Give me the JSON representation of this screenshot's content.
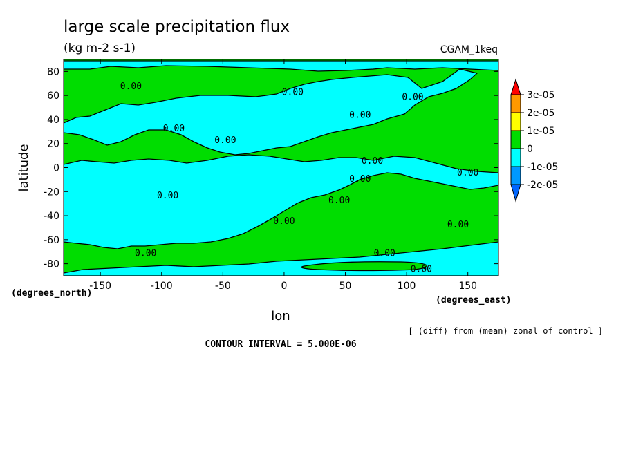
{
  "chart_data": {
    "type": "contour",
    "title": "large scale precipitation flux",
    "units": "(kg m-2 s-1)",
    "dataset_label": "CGAM_1keq",
    "xlabel": "lon",
    "ylabel": "latitude",
    "x_units": "(degrees_east)",
    "y_units": "(degrees_north)",
    "xlim": [
      -180,
      175
    ],
    "ylim": [
      -90,
      90
    ],
    "x_ticks": [
      -150,
      -100,
      -50,
      0,
      50,
      100,
      150
    ],
    "x_tick_labels": [
      "-150",
      "-100",
      "-50",
      "0",
      "50",
      "100",
      "150"
    ],
    "y_ticks": [
      -80,
      -60,
      -40,
      -20,
      0,
      20,
      40,
      60,
      80
    ],
    "y_tick_labels": [
      "-80",
      "-60",
      "-40",
      "-20",
      "0",
      "20",
      "40",
      "60",
      "80"
    ],
    "note": "[ (diff) from (mean) zonal of control ]",
    "contour_interval_text": "CONTOUR INTERVAL = 5.000E-06",
    "contour_label": "0.00",
    "colorbar": {
      "levels": [
        {
          "label": "3e-05",
          "color": "#ff9900"
        },
        {
          "label": "2e-05",
          "color": "#ffff00"
        },
        {
          "label": "1e-05",
          "color": "#00dd00"
        },
        {
          "label": "0",
          "color": "#00ffff"
        },
        {
          "label": "-1e-05",
          "color": "#0099ff"
        },
        {
          "label": "-2e-05",
          "color": ""
        }
      ],
      "top_color": "#ff0000",
      "bottom_color": "#0066ff"
    },
    "fill_colors": {
      "positive": "#00dd00",
      "negative": "#00ffff"
    },
    "contour_labels": [
      {
        "lon": -125,
        "lat": 67
      },
      {
        "lon": 7,
        "lat": 62
      },
      {
        "lon": 105,
        "lat": 58
      },
      {
        "lon": 62,
        "lat": 43
      },
      {
        "lon": -90,
        "lat": 32
      },
      {
        "lon": -48,
        "lat": 22
      },
      {
        "lon": 72,
        "lat": 5
      },
      {
        "lon": 150,
        "lat": -5
      },
      {
        "lon": 62,
        "lat": -10
      },
      {
        "lon": -95,
        "lat": -24
      },
      {
        "lon": 45,
        "lat": -28
      },
      {
        "lon": 0,
        "lat": -45
      },
      {
        "lon": 142,
        "lat": -48
      },
      {
        "lon": 82,
        "lat": -72
      },
      {
        "lon": -113,
        "lat": -72
      },
      {
        "lon": 112,
        "lat": -85
      }
    ]
  }
}
